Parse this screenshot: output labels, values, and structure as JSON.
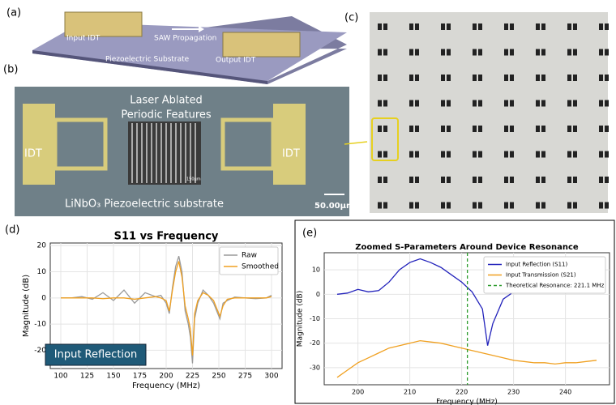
{
  "panel_labels": [
    "(a)",
    "(b)",
    "(c)",
    "(d)",
    "(e)"
  ],
  "panel_a": {
    "input_idt": "Input IDT",
    "propagation": "SAW Propagation",
    "substrate": "Piezoelectric Substrate",
    "output_idt": "Output IDT"
  },
  "panel_b": {
    "features_line1": "Laser Ablated",
    "features_line2": "Periodic Features",
    "idt_left": "IDT",
    "idt_right": "IDT",
    "inset_scale": "150μm",
    "substrate": "LiNbO₃ Piezoelectric substrate",
    "scale_bar": "50.00μm"
  },
  "chart_data": [
    {
      "type": "line",
      "title": "S11 vs Frequency",
      "xlabel": "Frequency (MHz)",
      "ylabel": "Magnitude (dB)",
      "x": [
        100,
        110,
        120,
        130,
        140,
        150,
        160,
        170,
        180,
        190,
        195,
        200,
        203,
        206,
        209,
        212,
        215,
        218,
        221,
        223,
        225,
        227,
        230,
        235,
        240,
        245,
        248,
        251,
        254,
        258,
        265,
        275,
        285,
        295,
        300
      ],
      "xlim": [
        90,
        310
      ],
      "xticks": [
        100,
        125,
        150,
        175,
        200,
        225,
        250,
        275,
        300
      ],
      "ylim": [
        -27,
        21
      ],
      "yticks": [
        -20,
        -10,
        0,
        10,
        20
      ],
      "grid": true,
      "legend": "upper right",
      "annotation": "Input Reflection",
      "series": [
        {
          "name": "Raw",
          "color": "#9a9a9a",
          "values": [
            0,
            0,
            0.5,
            -0.5,
            2,
            -1,
            3,
            -2,
            2,
            0.5,
            1,
            -2,
            -6,
            4,
            12,
            16,
            10,
            -5,
            -10,
            -15,
            -25,
            -8,
            -2,
            3,
            1,
            -2,
            -5,
            -8,
            -2,
            -1,
            0.3,
            0,
            -0.3,
            0,
            1
          ]
        },
        {
          "name": "Smoothed",
          "color": "#f0a020",
          "values": [
            0,
            0,
            0,
            0,
            -0.3,
            0,
            0,
            -0.5,
            0,
            0.5,
            0,
            -1,
            -5,
            3,
            10,
            14,
            8,
            -3,
            -8,
            -12,
            -22,
            -6,
            -1,
            2,
            1,
            -1,
            -4,
            -7,
            -3,
            -0.5,
            0,
            0,
            0,
            0,
            0.5
          ]
        }
      ]
    },
    {
      "type": "line",
      "title": "Zoomed S-Parameters Around Device Resonance",
      "xlabel": "Frequency (MHz)",
      "ylabel": "Magnitude (dB)",
      "x": [
        196,
        198,
        200,
        202,
        204,
        206,
        208,
        210,
        212,
        214,
        216,
        218,
        220,
        222,
        224,
        225,
        226,
        228,
        230,
        232,
        234,
        236,
        238,
        240,
        242,
        244,
        246
      ],
      "xlim": [
        193.5,
        248.5
      ],
      "xticks": [
        200,
        210,
        220,
        230,
        240
      ],
      "ylim": [
        -37,
        17
      ],
      "yticks": [
        -30,
        -20,
        -10,
        0,
        10
      ],
      "grid": true,
      "legend": "upper right",
      "series": [
        {
          "name": "Input Reflection (S11)",
          "color": "#2222bb",
          "values": [
            0,
            0.5,
            2,
            1,
            1.5,
            5,
            10,
            13,
            14.5,
            13,
            11,
            8,
            5,
            1,
            -6,
            -21,
            -12,
            -2,
            1,
            2,
            2,
            3,
            3,
            3,
            2.5,
            2,
            1
          ]
        },
        {
          "name": "Input Transmission (S21)",
          "color": "#f0a020",
          "values": [
            -34,
            -31,
            -28,
            -26,
            -24,
            -22,
            -21,
            -20,
            -19,
            -19.5,
            -20,
            -21,
            -22,
            -23,
            -24,
            -24.5,
            -25,
            -26,
            -27,
            -27.5,
            -28,
            -28,
            -28.5,
            -28,
            -28,
            -27.5,
            -27
          ]
        }
      ],
      "reference_line": {
        "name": "Theoretical Resonance: 221.1 MHz",
        "value": 221.1,
        "color": "#2a9a2a"
      }
    }
  ]
}
